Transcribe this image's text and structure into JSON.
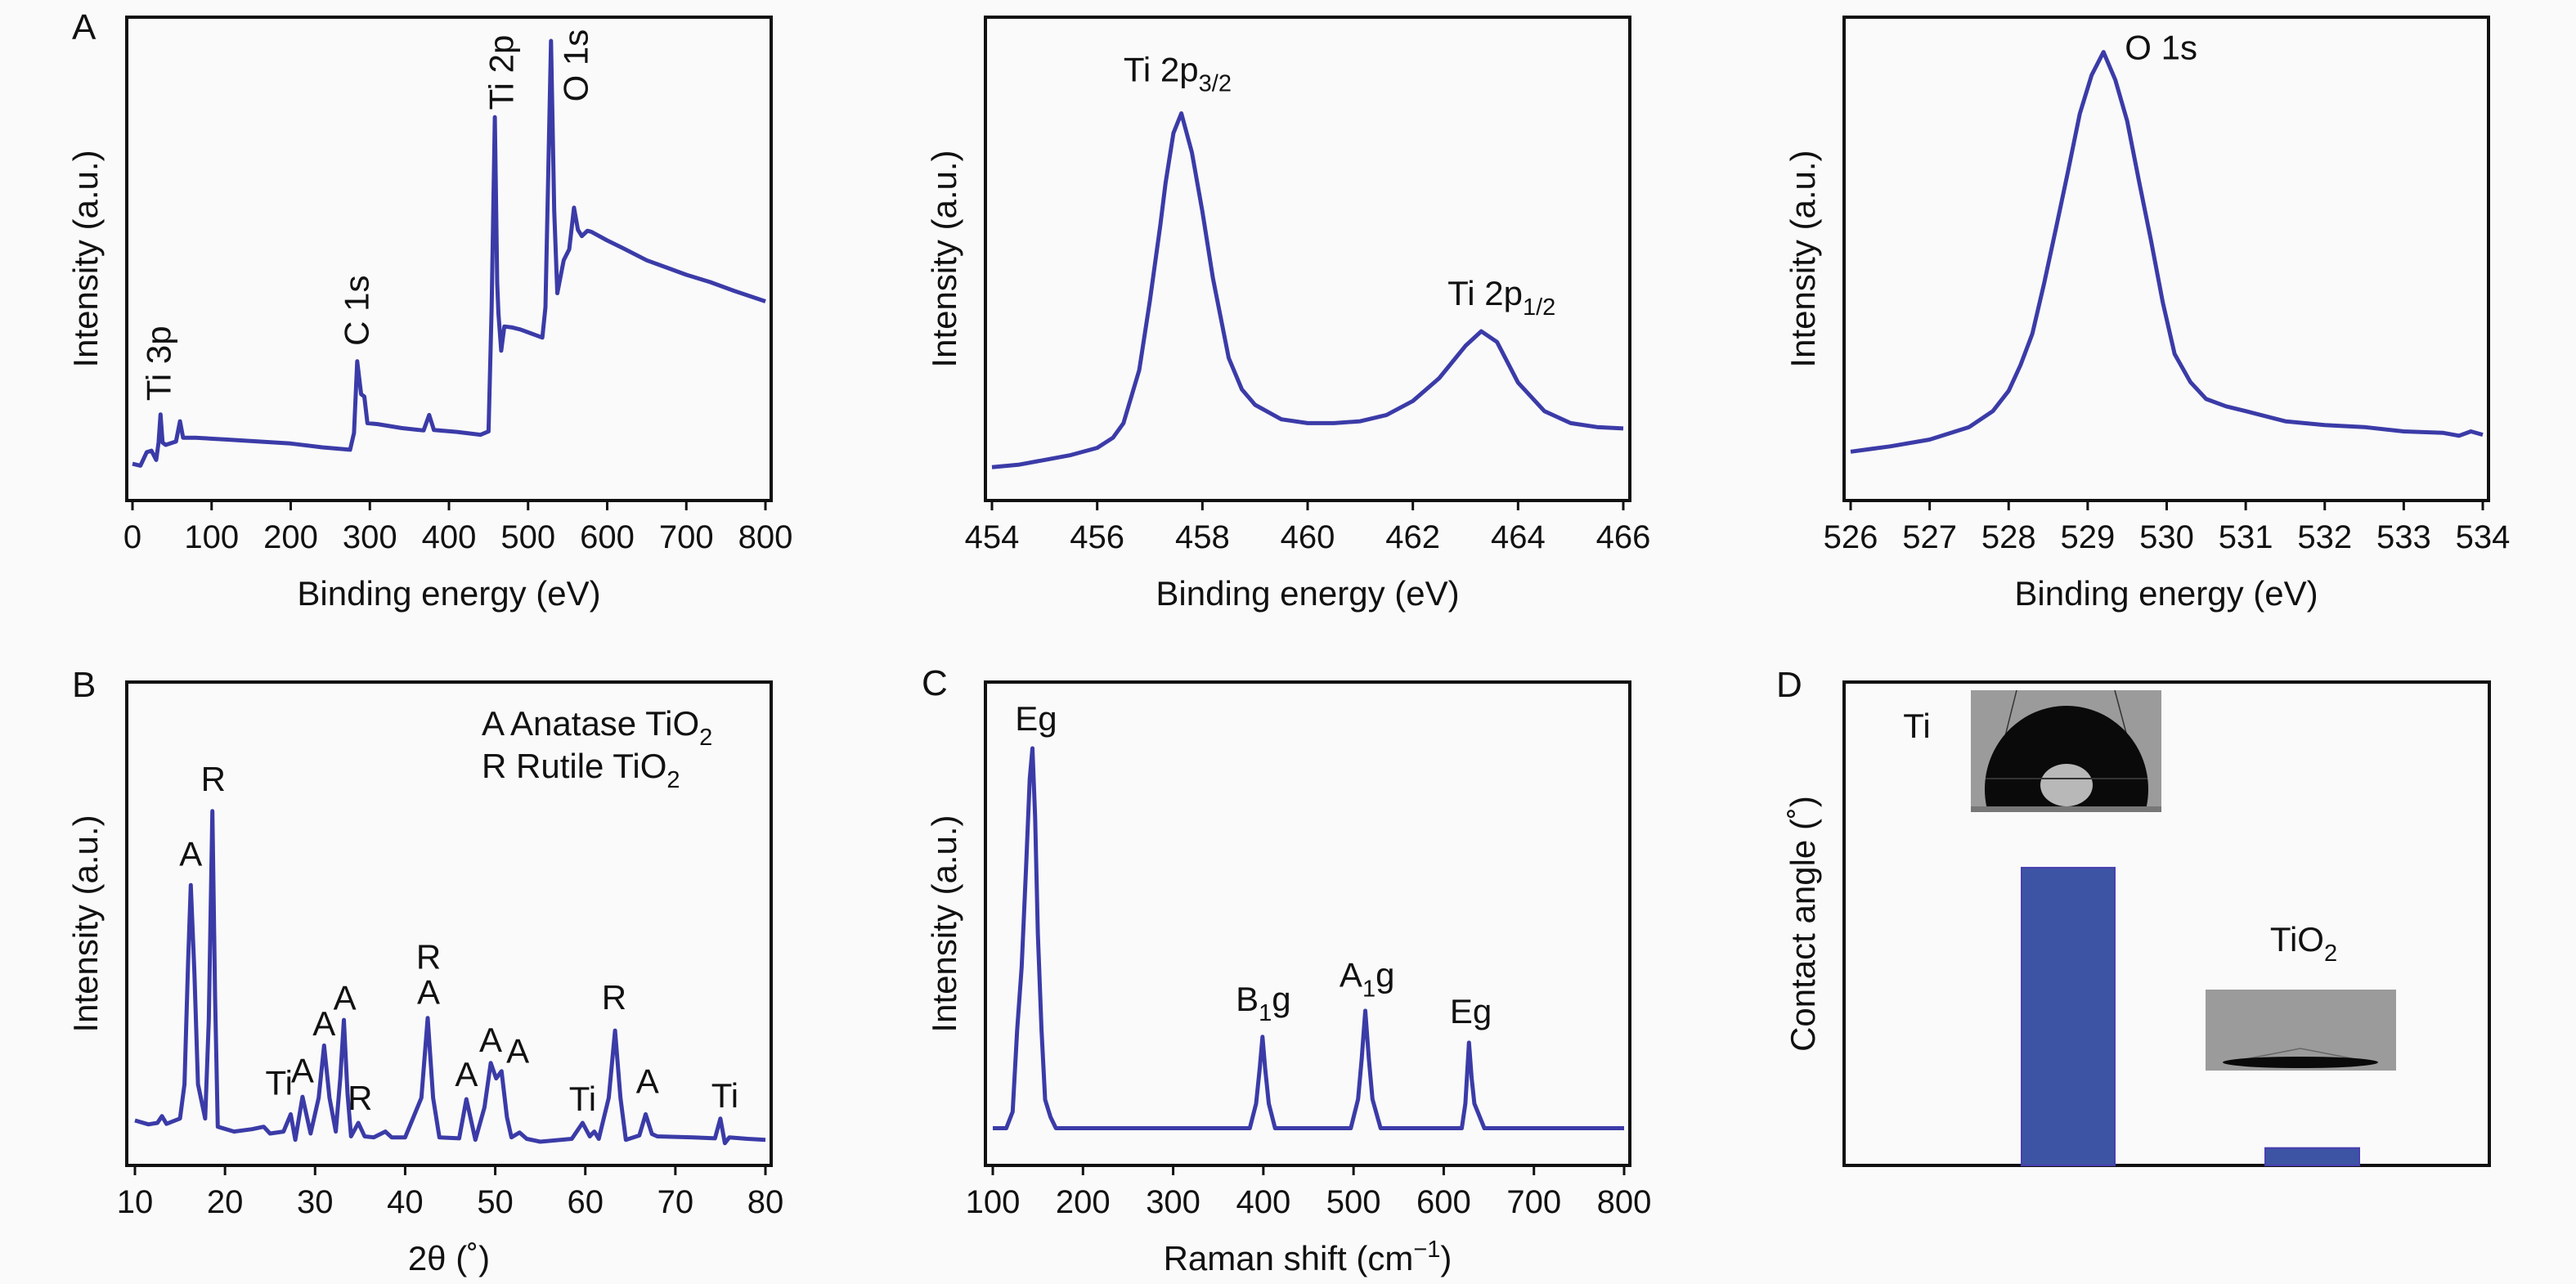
{
  "line_color": "#3b3ba8",
  "bar_color": "#3c54a3",
  "axis_color": "#111111",
  "chart_data": [
    {
      "id": "A1",
      "panel_letter": "A",
      "type": "line",
      "xlabel": [
        {
          "t": "Binding energy (eV)"
        }
      ],
      "ylabel": "Intensity (a.u.)",
      "xlim": [
        0,
        800
      ],
      "ylim": [
        0,
        100
      ],
      "xticks": [
        0,
        100,
        200,
        300,
        400,
        500,
        600,
        700,
        800
      ],
      "points": [
        [
          0,
          7.6
        ],
        [
          10,
          7.2
        ],
        [
          18,
          10
        ],
        [
          24,
          10.3
        ],
        [
          30,
          8.4
        ],
        [
          33,
          12
        ],
        [
          35.5,
          17.8
        ],
        [
          38,
          12
        ],
        [
          42,
          11.5
        ],
        [
          55,
          12.2
        ],
        [
          60,
          16.4
        ],
        [
          64,
          13
        ],
        [
          80,
          13
        ],
        [
          120,
          12.6
        ],
        [
          160,
          12.2
        ],
        [
          200,
          11.8
        ],
        [
          240,
          11
        ],
        [
          275,
          10.5
        ],
        [
          280,
          14
        ],
        [
          284,
          28.8
        ],
        [
          289,
          22
        ],
        [
          293,
          21.5
        ],
        [
          297,
          16
        ],
        [
          310,
          15.8
        ],
        [
          340,
          15
        ],
        [
          368,
          14.5
        ],
        [
          375,
          17.7
        ],
        [
          381,
          14.6
        ],
        [
          410,
          14.2
        ],
        [
          440,
          13.6
        ],
        [
          450,
          14.3
        ],
        [
          454,
          40
        ],
        [
          458,
          79.3
        ],
        [
          461,
          45
        ],
        [
          462.5,
          38.7
        ],
        [
          466,
          31
        ],
        [
          470,
          36
        ],
        [
          480,
          35.8
        ],
        [
          490,
          35.4
        ],
        [
          505,
          34.5
        ],
        [
          518,
          33.7
        ],
        [
          522,
          40
        ],
        [
          529,
          95.1
        ],
        [
          533,
          60
        ],
        [
          537,
          42.9
        ],
        [
          545,
          49.7
        ],
        [
          552,
          52
        ],
        [
          558,
          60.6
        ],
        [
          563,
          56
        ],
        [
          568,
          54.7
        ],
        [
          575,
          55.8
        ],
        [
          580,
          55.6
        ],
        [
          600,
          53.8
        ],
        [
          620,
          52.2
        ],
        [
          650,
          49.7
        ],
        [
          675,
          48.2
        ],
        [
          700,
          46.7
        ],
        [
          730,
          45.2
        ],
        [
          760,
          43.4
        ],
        [
          800,
          41.2
        ]
      ],
      "annotations": [
        {
          "parts": [
            {
              "t": "Ti 3p"
            }
          ],
          "x": 48,
          "y": 20.6,
          "orientation": "vertical"
        },
        {
          "parts": [
            {
              "t": "C 1s"
            }
          ],
          "x": 298,
          "y": 32,
          "orientation": "vertical"
        },
        {
          "parts": [
            {
              "t": "Ti 2p"
            }
          ],
          "x": 481,
          "y": 80.8,
          "orientation": "vertical"
        },
        {
          "parts": [
            {
              "t": "O 1s"
            }
          ],
          "x": 575,
          "y": 82.5,
          "orientation": "vertical"
        }
      ]
    },
    {
      "id": "A2",
      "panel_letter": "",
      "type": "line",
      "xlabel": [
        {
          "t": "Binding energy (eV)"
        }
      ],
      "ylabel": "Intensity (a.u.)",
      "xlim": [
        454,
        466
      ],
      "ylim": [
        0,
        100
      ],
      "xticks": [
        454,
        456,
        458,
        460,
        462,
        464,
        466
      ],
      "points": [
        [
          454,
          6.9
        ],
        [
          454.5,
          7.4
        ],
        [
          455,
          8.4
        ],
        [
          455.5,
          9.4
        ],
        [
          456,
          10.9
        ],
        [
          456.3,
          13
        ],
        [
          456.5,
          16
        ],
        [
          456.8,
          27
        ],
        [
          457,
          41.2
        ],
        [
          457.2,
          57
        ],
        [
          457.3,
          65.7
        ],
        [
          457.45,
          76
        ],
        [
          457.6,
          80.1
        ],
        [
          457.8,
          72
        ],
        [
          458,
          59.8
        ],
        [
          458.2,
          46
        ],
        [
          458.5,
          29.5
        ],
        [
          458.75,
          23
        ],
        [
          459,
          19.8
        ],
        [
          459.5,
          16.8
        ],
        [
          460,
          16
        ],
        [
          460.5,
          16
        ],
        [
          461,
          16.4
        ],
        [
          461.5,
          17.7
        ],
        [
          462,
          20.6
        ],
        [
          462.5,
          25.3
        ],
        [
          463,
          32
        ],
        [
          463.3,
          35
        ],
        [
          463.6,
          32.8
        ],
        [
          464,
          24.4
        ],
        [
          464.5,
          18.5
        ],
        [
          465,
          16
        ],
        [
          465.5,
          15.2
        ],
        [
          466,
          14.9
        ]
      ],
      "annotations": [
        {
          "parts": [
            {
              "t": "Ti 2p"
            },
            {
              "t": "3/2",
              "sub": true
            }
          ],
          "x": 456.5,
          "y": 86.7
        },
        {
          "parts": [
            {
              "t": "Ti 2p"
            },
            {
              "t": "1/2",
              "sub": true
            }
          ],
          "x": 462.66,
          "y": 40.4
        }
      ]
    },
    {
      "id": "A3",
      "panel_letter": "",
      "type": "line",
      "xlabel": [
        {
          "t": "Binding energy (eV)"
        }
      ],
      "ylabel": "Intensity (a.u.)",
      "xlim": [
        526,
        534
      ],
      "ylim": [
        0,
        100
      ],
      "xticks": [
        526,
        527,
        528,
        529,
        530,
        531,
        532,
        533,
        534
      ],
      "points": [
        [
          526,
          10.1
        ],
        [
          526.5,
          11.2
        ],
        [
          527,
          12.6
        ],
        [
          527.5,
          15.2
        ],
        [
          527.8,
          18.5
        ],
        [
          528,
          22.7
        ],
        [
          528.15,
          28
        ],
        [
          528.3,
          34.5
        ],
        [
          528.45,
          45
        ],
        [
          528.6,
          56.4
        ],
        [
          528.75,
          68
        ],
        [
          528.9,
          80
        ],
        [
          529.05,
          88
        ],
        [
          529.2,
          92.8
        ],
        [
          529.35,
          87
        ],
        [
          529.5,
          78.5
        ],
        [
          529.65,
          66
        ],
        [
          529.8,
          53.9
        ],
        [
          529.95,
          41
        ],
        [
          530.1,
          30.3
        ],
        [
          530.3,
          24.5
        ],
        [
          530.5,
          21
        ],
        [
          530.75,
          19.5
        ],
        [
          531,
          18.5
        ],
        [
          531.5,
          16.4
        ],
        [
          532,
          15.6
        ],
        [
          532.5,
          15.2
        ],
        [
          533,
          14.3
        ],
        [
          533.5,
          14
        ],
        [
          533.7,
          13.4
        ],
        [
          533.85,
          14.3
        ],
        [
          534,
          13.6
        ]
      ],
      "annotations": [
        {
          "parts": [
            {
              "t": "O 1s"
            }
          ],
          "x": 529.47,
          "y": 91.3
        }
      ]
    },
    {
      "id": "B",
      "panel_letter": "B",
      "type": "line",
      "xlabel": [
        {
          "t": "2θ (˚)"
        }
      ],
      "ylabel": "Intensity (a.u.)",
      "xlim": [
        10,
        80
      ],
      "ylim": [
        0,
        100
      ],
      "xticks": [
        10,
        20,
        30,
        40,
        50,
        60,
        70,
        80
      ],
      "legend": [
        [
          {
            "t": "A Anatase TiO"
          },
          {
            "t": "2",
            "sub": true
          }
        ],
        [
          {
            "t": "R Rutile TiO"
          },
          {
            "t": "2",
            "sub": true
          }
        ]
      ],
      "legend_position": "top-right",
      "points": [
        [
          10,
          9.3
        ],
        [
          11.5,
          8.5
        ],
        [
          12.5,
          8.8
        ],
        [
          13,
          10.2
        ],
        [
          13.5,
          8.6
        ],
        [
          15,
          9.7
        ],
        [
          15.5,
          16.8
        ],
        [
          15.9,
          42
        ],
        [
          16.2,
          58
        ],
        [
          16.6,
          40
        ],
        [
          17,
          16.8
        ],
        [
          17.8,
          9.7
        ],
        [
          18.2,
          30
        ],
        [
          18.6,
          73.3
        ],
        [
          18.9,
          35
        ],
        [
          19.2,
          8
        ],
        [
          21,
          7
        ],
        [
          23,
          7.5
        ],
        [
          24.3,
          8
        ],
        [
          25,
          6.6
        ],
        [
          26.5,
          7
        ],
        [
          27.3,
          10.6
        ],
        [
          27.8,
          5.3
        ],
        [
          28.6,
          14.2
        ],
        [
          29.5,
          6.6
        ],
        [
          30.4,
          14
        ],
        [
          31,
          24.8
        ],
        [
          31.6,
          14
        ],
        [
          32.3,
          7
        ],
        [
          32.8,
          18
        ],
        [
          33.2,
          30.1
        ],
        [
          33.6,
          15
        ],
        [
          34,
          6
        ],
        [
          34.8,
          8.8
        ],
        [
          35.5,
          6
        ],
        [
          36.5,
          5.8
        ],
        [
          37.8,
          7
        ],
        [
          38.5,
          5.8
        ],
        [
          40,
          5.8
        ],
        [
          41.8,
          14
        ],
        [
          42.5,
          30.5
        ],
        [
          43.1,
          14
        ],
        [
          43.8,
          5.8
        ],
        [
          46,
          5.6
        ],
        [
          46.8,
          13.7
        ],
        [
          47.8,
          5.3
        ],
        [
          48.8,
          12
        ],
        [
          49.5,
          21.2
        ],
        [
          50.1,
          18
        ],
        [
          50.7,
          19.5
        ],
        [
          51.3,
          10
        ],
        [
          51.8,
          5.8
        ],
        [
          52.7,
          6.8
        ],
        [
          53.5,
          5.5
        ],
        [
          55,
          4.9
        ],
        [
          58.5,
          5.5
        ],
        [
          59.7,
          8.8
        ],
        [
          60.5,
          6
        ],
        [
          61,
          7
        ],
        [
          61.5,
          5.5
        ],
        [
          62.6,
          14
        ],
        [
          63.3,
          27.9
        ],
        [
          63.9,
          14
        ],
        [
          64.5,
          5.3
        ],
        [
          66,
          6.2
        ],
        [
          66.7,
          10.6
        ],
        [
          67.4,
          6.5
        ],
        [
          68,
          6
        ],
        [
          72,
          5.8
        ],
        [
          74.4,
          5.6
        ],
        [
          75,
          9.7
        ],
        [
          75.5,
          4.6
        ],
        [
          76,
          5.8
        ],
        [
          78,
          5.5
        ],
        [
          80,
          5.3
        ]
      ],
      "annotations": [
        {
          "parts": [
            {
              "t": "A"
            }
          ],
          "x": 16.2,
          "y": 62
        },
        {
          "parts": [
            {
              "t": "R"
            }
          ],
          "x": 18.7,
          "y": 77.5
        },
        {
          "parts": [
            {
              "t": "Ti"
            }
          ],
          "x": 26,
          "y": 14.6
        },
        {
          "parts": [
            {
              "t": "A"
            }
          ],
          "x": 28.6,
          "y": 17.2
        },
        {
          "parts": [
            {
              "t": "A"
            }
          ],
          "x": 31,
          "y": 26.9
        },
        {
          "parts": [
            {
              "t": "A"
            }
          ],
          "x": 33.3,
          "y": 32.2
        },
        {
          "parts": [
            {
              "t": "R"
            }
          ],
          "x": 35,
          "y": 11.5
        },
        {
          "parts": [
            {
              "t": "R"
            }
          ],
          "x": 42.6,
          "y": 40.7
        },
        {
          "parts": [
            {
              "t": "A"
            }
          ],
          "x": 42.6,
          "y": 33.4
        },
        {
          "parts": [
            {
              "t": "A"
            }
          ],
          "x": 46.8,
          "y": 16.4
        },
        {
          "parts": [
            {
              "t": "A"
            }
          ],
          "x": 49.5,
          "y": 23.5
        },
        {
          "parts": [
            {
              "t": "A"
            }
          ],
          "x": 52.5,
          "y": 21.2
        },
        {
          "parts": [
            {
              "t": "Ti"
            }
          ],
          "x": 59.7,
          "y": 11.3
        },
        {
          "parts": [
            {
              "t": "R"
            }
          ],
          "x": 63.2,
          "y": 32.3
        },
        {
          "parts": [
            {
              "t": "A"
            }
          ],
          "x": 66.9,
          "y": 15
        },
        {
          "parts": [
            {
              "t": "Ti"
            }
          ],
          "x": 75.5,
          "y": 12
        }
      ]
    },
    {
      "id": "C",
      "panel_letter": "C",
      "type": "line",
      "xlabel": [
        {
          "t": "Raman shift (cm"
        },
        {
          "t": "−1",
          "sup": true
        },
        {
          "t": ")"
        }
      ],
      "ylabel": "Intensity (a.u.)",
      "xlim": [
        100,
        800
      ],
      "ylim": [
        0,
        100
      ],
      "xticks": [
        100,
        200,
        300,
        400,
        500,
        600,
        700,
        800
      ],
      "points": [
        [
          100,
          7.7
        ],
        [
          115,
          7.7
        ],
        [
          122,
          11.1
        ],
        [
          127,
          28
        ],
        [
          132,
          41
        ],
        [
          137,
          62
        ],
        [
          141,
          80
        ],
        [
          144,
          86.3
        ],
        [
          147,
          72
        ],
        [
          150,
          48
        ],
        [
          154,
          28
        ],
        [
          158,
          13.6
        ],
        [
          164,
          10
        ],
        [
          170,
          7.7
        ],
        [
          385,
          7.7
        ],
        [
          392,
          12.8
        ],
        [
          396,
          20
        ],
        [
          399,
          26.6
        ],
        [
          402,
          20
        ],
        [
          406,
          12.8
        ],
        [
          413,
          7.7
        ],
        [
          497,
          7.7
        ],
        [
          505,
          13.7
        ],
        [
          509,
          22
        ],
        [
          513,
          32
        ],
        [
          517,
          22
        ],
        [
          521,
          13.7
        ],
        [
          530,
          7.7
        ],
        [
          620,
          7.7
        ],
        [
          624,
          12.8
        ],
        [
          628,
          25.4
        ],
        [
          631,
          18
        ],
        [
          634,
          12.8
        ],
        [
          645,
          7.7
        ],
        [
          800,
          7.7
        ]
      ],
      "annotations": [
        {
          "parts": [
            {
              "t": "Eg"
            }
          ],
          "x": 148,
          "y": 90
        },
        {
          "parts": [
            {
              "t": "B"
            },
            {
              "t": "1",
              "sub": true
            },
            {
              "t": "g"
            }
          ],
          "x": 400,
          "y": 32
        },
        {
          "parts": [
            {
              "t": "A"
            },
            {
              "t": "1",
              "sub": true
            },
            {
              "t": "g"
            }
          ],
          "x": 515,
          "y": 37
        },
        {
          "parts": [
            {
              "t": "Eg"
            }
          ],
          "x": 630,
          "y": 29.4
        }
      ]
    },
    {
      "id": "D",
      "panel_letter": "D",
      "type": "bar",
      "ylabel": "Contact angle (˚)",
      "ylim": [
        0,
        100
      ],
      "categories": [
        [
          {
            "t": "Ti"
          }
        ],
        [
          {
            "t": "TiO"
          },
          {
            "t": "2",
            "sub": true
          }
        ]
      ],
      "values": [
        61.6,
        3.6
      ]
    }
  ]
}
